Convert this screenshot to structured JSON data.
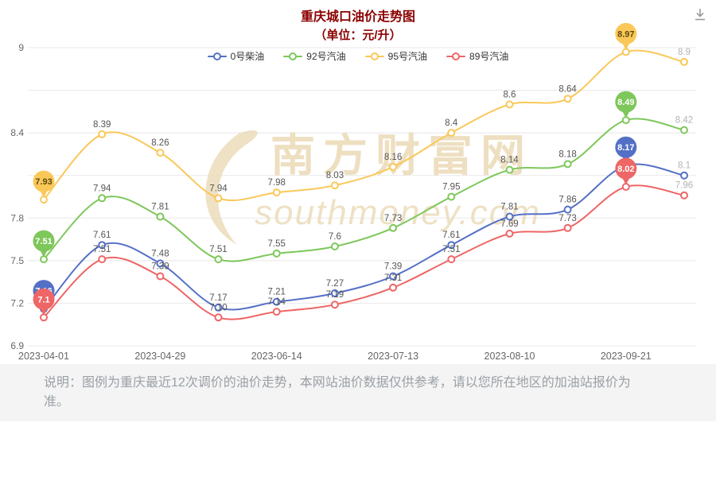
{
  "header": {
    "title": "重庆城口油价走势图",
    "subtitle": "（单位：元/升）",
    "title_color": "#8b0000"
  },
  "chart_data": {
    "type": "line",
    "title": "重庆城口油价走势图",
    "unit": "元/升",
    "legend_position": "top",
    "grid": "horizontal",
    "num_points": 12,
    "x_tick_labels": [
      "2023-04-01",
      "2023-04-29",
      "2023-06-14",
      "2023-07-13",
      "2023-08-10",
      "2023-09-21"
    ],
    "x_tick_indices": [
      0,
      2,
      4,
      6,
      8,
      10
    ],
    "ylim": [
      6.9,
      9
    ],
    "y_grid_step": 0.3,
    "y_tick_labels": [
      "9",
      "8.4",
      "7.8",
      "7.5",
      "7.2",
      "6.9"
    ],
    "axis_label_color": "#666666",
    "label_color": "#555555",
    "end_label_color": "#b3b3b3",
    "balloon_indices": [
      0,
      10
    ],
    "series": [
      {
        "name": "0号柴油",
        "color": "#5470c6",
        "balloon_text_color": "#ffffff",
        "values": [
          7.16,
          7.61,
          7.48,
          7.17,
          7.21,
          7.27,
          7.39,
          7.61,
          7.81,
          7.86,
          8.17,
          8.1
        ],
        "labels": [
          "7.16",
          "7.61",
          "7.48",
          "7.17",
          "7.21",
          "7.27",
          "7.39",
          "7.61",
          "7.81",
          "7.86",
          "8.17",
          "8.1"
        ]
      },
      {
        "name": "92号汽油",
        "color": "#7ec75b",
        "balloon_text_color": "#ffffff",
        "values": [
          7.51,
          7.94,
          7.81,
          7.51,
          7.55,
          7.6,
          7.73,
          7.95,
          8.14,
          8.18,
          8.49,
          8.42
        ],
        "labels": [
          "7.51",
          "7.94",
          "7.81",
          "7.51",
          "7.55",
          "7.6",
          "7.73",
          "7.95",
          "8.14",
          "8.18",
          "8.49",
          "8.42"
        ]
      },
      {
        "name": "95号汽油",
        "color": "#fac858",
        "balloon_text_color": "#5d4a12",
        "values": [
          7.93,
          8.39,
          8.26,
          7.94,
          7.98,
          8.03,
          8.16,
          8.4,
          8.6,
          8.64,
          8.97,
          8.9
        ],
        "labels": [
          "7.93",
          "8.39",
          "8.26",
          "7.94",
          "7.98",
          "8.03",
          "8.16",
          "8.4",
          "8.6",
          "8.64",
          "8.97",
          "8.9"
        ]
      },
      {
        "name": "89号汽油",
        "color": "#ee6666",
        "balloon_text_color": "#ffffff",
        "values": [
          7.1,
          7.51,
          7.39,
          7.1,
          7.14,
          7.19,
          7.31,
          7.51,
          7.69,
          7.73,
          8.02,
          7.96
        ],
        "labels": [
          "7.1",
          "7.51",
          "7.39",
          "7.10",
          "7.14",
          "7.19",
          "7.31",
          "7.51",
          "7.69",
          "7.73",
          "8.02",
          "7.96"
        ]
      }
    ]
  },
  "watermark": {
    "line1": "南方财富网",
    "line2": "southmoney.com",
    "color": "#ead9b5"
  },
  "note": "说明：图例为重庆最近12次调价的油价走势，本网站油价数据仅供参考，请以您所在地区的加油站报价为准。"
}
